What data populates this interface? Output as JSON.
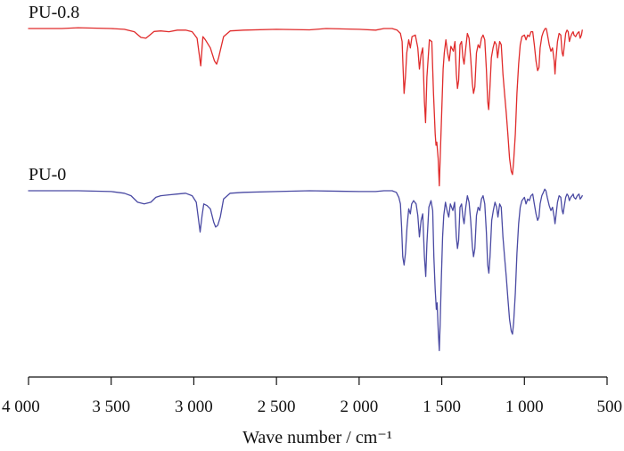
{
  "chart_data": {
    "type": "line",
    "title": "",
    "xlabel": "Wave number / cm⁻¹",
    "ylabel": "",
    "xlim": [
      4000,
      500
    ],
    "x_reversed": true,
    "ticks": [
      {
        "value": 4000,
        "label": "4 000"
      },
      {
        "value": 3500,
        "label": "3 500"
      },
      {
        "value": 3000,
        "label": "3 000"
      },
      {
        "value": 2500,
        "label": "2 500"
      },
      {
        "value": 2000,
        "label": "2 000"
      },
      {
        "value": 1500,
        "label": "1 500"
      },
      {
        "value": 1000,
        "label": "1 000"
      },
      {
        "value": 500,
        "label": "500"
      }
    ],
    "grid": false,
    "series": [
      {
        "name": "PU-0.8",
        "color": "#e02b2b",
        "transmittance": [
          [
            4000,
            100
          ],
          [
            3800,
            100
          ],
          [
            3700,
            100.5
          ],
          [
            3500,
            100
          ],
          [
            3420,
            99.5
          ],
          [
            3360,
            98
          ],
          [
            3320,
            94.5
          ],
          [
            3290,
            94
          ],
          [
            3260,
            96.5
          ],
          [
            3240,
            98.2
          ],
          [
            3200,
            98.5
          ],
          [
            3150,
            98
          ],
          [
            3100,
            99
          ],
          [
            3050,
            99
          ],
          [
            3010,
            98
          ],
          [
            2980,
            94
          ],
          [
            2958,
            77
          ],
          [
            2945,
            95
          ],
          [
            2930,
            93
          ],
          [
            2900,
            88
          ],
          [
            2875,
            80
          ],
          [
            2862,
            78
          ],
          [
            2850,
            82
          ],
          [
            2820,
            95
          ],
          [
            2780,
            98.5
          ],
          [
            2700,
            99
          ],
          [
            2500,
            99.5
          ],
          [
            2300,
            99.2
          ],
          [
            2200,
            100
          ],
          [
            2000,
            99.5
          ],
          [
            1900,
            99
          ],
          [
            1850,
            100
          ],
          [
            1800,
            100
          ],
          [
            1770,
            99
          ],
          [
            1750,
            97
          ],
          [
            1740,
            92
          ],
          [
            1735,
            78
          ],
          [
            1728,
            60
          ],
          [
            1720,
            70
          ],
          [
            1712,
            85
          ],
          [
            1700,
            93
          ],
          [
            1690,
            88
          ],
          [
            1680,
            95
          ],
          [
            1660,
            96
          ],
          [
            1645,
            88
          ],
          [
            1635,
            75
          ],
          [
            1625,
            84
          ],
          [
            1615,
            88
          ],
          [
            1605,
            55
          ],
          [
            1598,
            42
          ],
          [
            1590,
            70
          ],
          [
            1575,
            93
          ],
          [
            1560,
            92
          ],
          [
            1550,
            60
          ],
          [
            1540,
            35
          ],
          [
            1535,
            28
          ],
          [
            1530,
            30
          ],
          [
            1522,
            20
          ],
          [
            1515,
            3
          ],
          [
            1508,
            25
          ],
          [
            1500,
            50
          ],
          [
            1492,
            75
          ],
          [
            1485,
            85
          ],
          [
            1475,
            93
          ],
          [
            1465,
            85
          ],
          [
            1455,
            80
          ],
          [
            1445,
            89
          ],
          [
            1430,
            86
          ],
          [
            1420,
            92
          ],
          [
            1412,
            72
          ],
          [
            1405,
            63
          ],
          [
            1398,
            68
          ],
          [
            1390,
            90
          ],
          [
            1380,
            92
          ],
          [
            1372,
            82
          ],
          [
            1365,
            78
          ],
          [
            1355,
            88
          ],
          [
            1345,
            97
          ],
          [
            1335,
            94
          ],
          [
            1325,
            82
          ],
          [
            1315,
            66
          ],
          [
            1308,
            60
          ],
          [
            1300,
            64
          ],
          [
            1290,
            85
          ],
          [
            1280,
            90
          ],
          [
            1270,
            88
          ],
          [
            1260,
            94
          ],
          [
            1250,
            96
          ],
          [
            1240,
            93
          ],
          [
            1230,
            75
          ],
          [
            1222,
            55
          ],
          [
            1216,
            50
          ],
          [
            1210,
            60
          ],
          [
            1200,
            82
          ],
          [
            1190,
            88
          ],
          [
            1180,
            92
          ],
          [
            1170,
            90
          ],
          [
            1162,
            82
          ],
          [
            1150,
            92
          ],
          [
            1140,
            90
          ],
          [
            1130,
            72
          ],
          [
            1120,
            60
          ],
          [
            1110,
            48
          ],
          [
            1100,
            35
          ],
          [
            1090,
            20
          ],
          [
            1080,
            12
          ],
          [
            1072,
            10
          ],
          [
            1065,
            18
          ],
          [
            1055,
            35
          ],
          [
            1045,
            60
          ],
          [
            1035,
            78
          ],
          [
            1025,
            90
          ],
          [
            1015,
            95
          ],
          [
            1000,
            96
          ],
          [
            990,
            93
          ],
          [
            980,
            96
          ],
          [
            970,
            95
          ],
          [
            960,
            98
          ],
          [
            950,
            98
          ],
          [
            940,
            90
          ],
          [
            930,
            80
          ],
          [
            920,
            74
          ],
          [
            912,
            76
          ],
          [
            905,
            88
          ],
          [
            895,
            95
          ],
          [
            885,
            98
          ],
          [
            875,
            100
          ],
          [
            868,
            100
          ],
          [
            860,
            96
          ],
          [
            850,
            90
          ],
          [
            840,
            86
          ],
          [
            830,
            88
          ],
          [
            820,
            80
          ],
          [
            815,
            72
          ],
          [
            810,
            80
          ],
          [
            800,
            92
          ],
          [
            790,
            97
          ],
          [
            780,
            96
          ],
          [
            772,
            85
          ],
          [
            766,
            83
          ],
          [
            760,
            88
          ],
          [
            750,
            97
          ],
          [
            742,
            99
          ],
          [
            735,
            98
          ],
          [
            728,
            92
          ],
          [
            720,
            95
          ],
          [
            712,
            97
          ],
          [
            705,
            98
          ],
          [
            700,
            96
          ],
          [
            690,
            95
          ],
          [
            680,
            97
          ],
          [
            670,
            98
          ],
          [
            663,
            94
          ],
          [
            655,
            96
          ],
          [
            650,
            99
          ]
        ]
      },
      {
        "name": "PU-0",
        "color": "#4a4aa3",
        "transmittance": [
          [
            4000,
            100
          ],
          [
            3800,
            100
          ],
          [
            3700,
            100
          ],
          [
            3500,
            99.5
          ],
          [
            3420,
            98.5
          ],
          [
            3380,
            97
          ],
          [
            3340,
            93
          ],
          [
            3300,
            92
          ],
          [
            3260,
            93
          ],
          [
            3230,
            96
          ],
          [
            3200,
            97
          ],
          [
            3150,
            97.5
          ],
          [
            3100,
            98
          ],
          [
            3050,
            98.5
          ],
          [
            3010,
            97
          ],
          [
            2985,
            93
          ],
          [
            2962,
            75
          ],
          [
            2950,
            85
          ],
          [
            2940,
            92
          ],
          [
            2920,
            91
          ],
          [
            2900,
            89
          ],
          [
            2880,
            81
          ],
          [
            2868,
            78
          ],
          [
            2855,
            79
          ],
          [
            2840,
            84
          ],
          [
            2820,
            95
          ],
          [
            2780,
            98.5
          ],
          [
            2700,
            99
          ],
          [
            2500,
            99.5
          ],
          [
            2300,
            100
          ],
          [
            2000,
            99.5
          ],
          [
            1900,
            99.5
          ],
          [
            1850,
            100
          ],
          [
            1800,
            100
          ],
          [
            1775,
            99
          ],
          [
            1760,
            96
          ],
          [
            1750,
            92
          ],
          [
            1743,
            78
          ],
          [
            1736,
            60
          ],
          [
            1728,
            55
          ],
          [
            1720,
            62
          ],
          [
            1710,
            78
          ],
          [
            1700,
            89
          ],
          [
            1690,
            86
          ],
          [
            1682,
            92
          ],
          [
            1670,
            94
          ],
          [
            1655,
            92
          ],
          [
            1645,
            85
          ],
          [
            1635,
            72
          ],
          [
            1625,
            82
          ],
          [
            1615,
            86
          ],
          [
            1605,
            60
          ],
          [
            1597,
            48
          ],
          [
            1590,
            68
          ],
          [
            1578,
            90
          ],
          [
            1565,
            94
          ],
          [
            1555,
            88
          ],
          [
            1548,
            60
          ],
          [
            1540,
            40
          ],
          [
            1533,
            28
          ],
          [
            1528,
            32
          ],
          [
            1521,
            14
          ],
          [
            1515,
            3
          ],
          [
            1510,
            18
          ],
          [
            1503,
            45
          ],
          [
            1495,
            72
          ],
          [
            1488,
            85
          ],
          [
            1478,
            93
          ],
          [
            1468,
            88
          ],
          [
            1458,
            84
          ],
          [
            1448,
            92
          ],
          [
            1433,
            88
          ],
          [
            1422,
            93
          ],
          [
            1412,
            72
          ],
          [
            1405,
            65
          ],
          [
            1398,
            70
          ],
          [
            1390,
            90
          ],
          [
            1380,
            92
          ],
          [
            1372,
            84
          ],
          [
            1365,
            80
          ],
          [
            1355,
            90
          ],
          [
            1345,
            97
          ],
          [
            1335,
            93
          ],
          [
            1325,
            82
          ],
          [
            1315,
            66
          ],
          [
            1308,
            60
          ],
          [
            1300,
            65
          ],
          [
            1290,
            85
          ],
          [
            1280,
            90
          ],
          [
            1270,
            88
          ],
          [
            1260,
            95
          ],
          [
            1250,
            97
          ],
          [
            1240,
            92
          ],
          [
            1230,
            75
          ],
          [
            1222,
            55
          ],
          [
            1215,
            50
          ],
          [
            1208,
            60
          ],
          [
            1198,
            82
          ],
          [
            1188,
            88
          ],
          [
            1178,
            93
          ],
          [
            1168,
            90
          ],
          [
            1160,
            84
          ],
          [
            1150,
            92
          ],
          [
            1140,
            90
          ],
          [
            1130,
            72
          ],
          [
            1120,
            60
          ],
          [
            1110,
            48
          ],
          [
            1100,
            35
          ],
          [
            1090,
            22
          ],
          [
            1080,
            15
          ],
          [
            1072,
            13
          ],
          [
            1065,
            20
          ],
          [
            1055,
            38
          ],
          [
            1045,
            62
          ],
          [
            1035,
            80
          ],
          [
            1025,
            90
          ],
          [
            1015,
            94
          ],
          [
            1000,
            96
          ],
          [
            990,
            92
          ],
          [
            980,
            95
          ],
          [
            970,
            94
          ],
          [
            960,
            97
          ],
          [
            950,
            98
          ],
          [
            940,
            92
          ],
          [
            930,
            86
          ],
          [
            920,
            82
          ],
          [
            912,
            84
          ],
          [
            905,
            92
          ],
          [
            895,
            97
          ],
          [
            885,
            99
          ],
          [
            877,
            101
          ],
          [
            870,
            100
          ],
          [
            862,
            96
          ],
          [
            850,
            91
          ],
          [
            840,
            88
          ],
          [
            830,
            90
          ],
          [
            820,
            84
          ],
          [
            815,
            80
          ],
          [
            810,
            84
          ],
          [
            800,
            93
          ],
          [
            790,
            97
          ],
          [
            780,
            96
          ],
          [
            772,
            88
          ],
          [
            766,
            86
          ],
          [
            760,
            90
          ],
          [
            750,
            96
          ],
          [
            742,
            98
          ],
          [
            735,
            97
          ],
          [
            728,
            94
          ],
          [
            720,
            96
          ],
          [
            712,
            97
          ],
          [
            705,
            98
          ],
          [
            700,
            96
          ],
          [
            690,
            95
          ],
          [
            680,
            97
          ],
          [
            670,
            98
          ],
          [
            663,
            95
          ],
          [
            655,
            96
          ],
          [
            650,
            97
          ]
        ]
      }
    ]
  }
}
